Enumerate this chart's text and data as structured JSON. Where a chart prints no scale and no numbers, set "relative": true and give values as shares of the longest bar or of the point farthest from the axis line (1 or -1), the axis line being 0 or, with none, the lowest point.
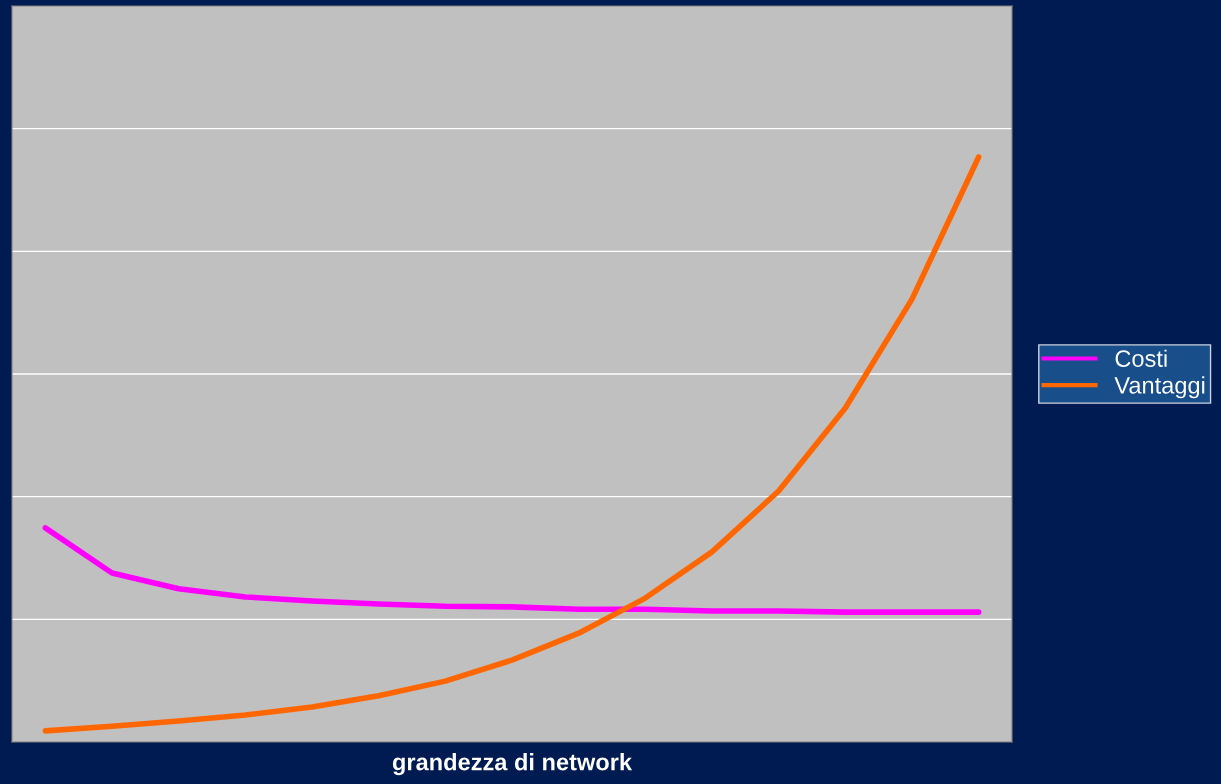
{
  "chart_data": {
    "type": "line",
    "relative": true,
    "xlabel": "grandezza di network",
    "categories": [
      null,
      null,
      null,
      null,
      null,
      null,
      null,
      null,
      null,
      null,
      null,
      null,
      null,
      null,
      null
    ],
    "series": [
      {
        "name": "Costi",
        "color": "#ff00ff",
        "values": [
          0.366,
          0.289,
          0.262,
          0.248,
          0.241,
          0.236,
          0.232,
          0.231,
          0.227,
          0.227,
          0.224,
          0.224,
          0.222,
          0.222,
          0.222
        ]
      },
      {
        "name": "Vantaggi",
        "color": "#ff6600",
        "values": [
          0.019,
          0.027,
          0.036,
          0.046,
          0.06,
          0.079,
          0.104,
          0.14,
          0.186,
          0.246,
          0.325,
          0.429,
          0.571,
          0.757,
          1.0
        ]
      }
    ],
    "grid": "y",
    "legend": "right",
    "marker": "none",
    "line_style": "solid"
  }
}
